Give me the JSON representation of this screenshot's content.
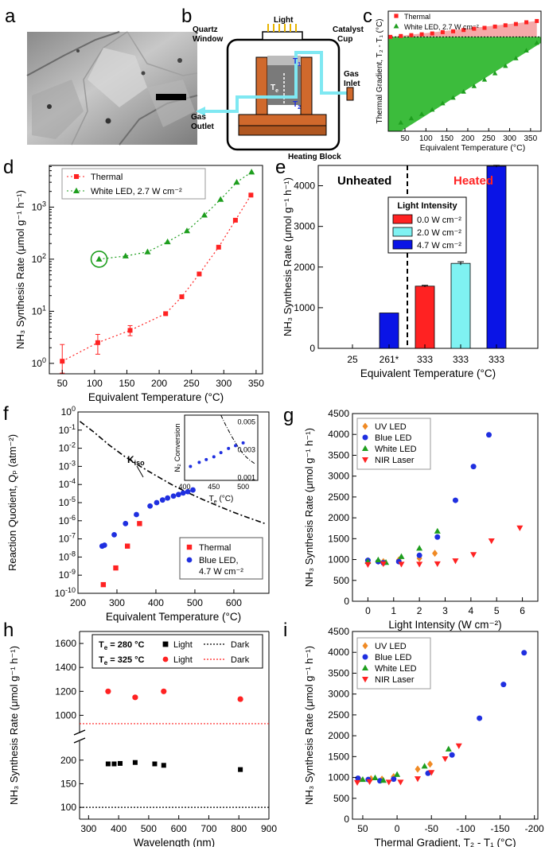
{
  "panel_letters": {
    "a": "a",
    "b": "b",
    "c": "c",
    "d": "d",
    "e": "e",
    "f": "f",
    "g": "g",
    "h": "h",
    "i": "i"
  },
  "colors": {
    "red": "#ff2222",
    "green": "#1e9e1e",
    "blue": "#1f2fe0",
    "orange": "#f08a24",
    "cyan": "#7ff2f2",
    "bar_blue": "#0a14e6",
    "pink_fill": "#f5a9a9",
    "green_fill": "#3cbc3c",
    "dark": "#000000"
  },
  "panel_a": {
    "image": "SEM micrograph (scale bar)"
  },
  "panel_b": {
    "light": "Light",
    "quartz_1": "Quartz",
    "quartz_2": "Window",
    "catalyst_1": "Catalyst",
    "catalyst_2": "Cup",
    "t1": "T",
    "t1_sub": "1",
    "t2": "T",
    "t2_sub": "2",
    "te": "T",
    "te_sub": "e",
    "gas_inlet_1": "Gas",
    "gas_inlet_2": "Inlet",
    "gas_outlet_1": "Gas",
    "gas_outlet_2": "Outlet",
    "heating_block": "Heating Block"
  },
  "chart_data": [
    {
      "id": "c",
      "type": "scatter",
      "xlabel": "Equivalent Temperature (°C)",
      "ylabel": "Thermal Gradient, T₂ - T₁ (°C)",
      "xlim": [
        10,
        375
      ],
      "ylim": [
        -220,
        60
      ],
      "x_ticks": [
        50,
        100,
        150,
        200,
        250,
        300,
        350
      ],
      "x_tick_labels": [
        "50",
        "100",
        "150",
        "200",
        "250",
        "300",
        "350"
      ],
      "series": [
        {
          "name": "Thermal",
          "marker": "square",
          "color": "#ff2222",
          "x": [
            15,
            40,
            65,
            90,
            115,
            140,
            165,
            190,
            215,
            240,
            265,
            290,
            315,
            340,
            365
          ],
          "y": [
            0,
            2,
            4,
            6,
            8,
            11,
            13,
            16,
            19,
            21,
            24,
            27,
            30,
            34,
            37
          ]
        },
        {
          "name": "White LED, 2.7 W cm⁻²",
          "marker": "triangle",
          "color": "#1e9e1e",
          "x": [
            40,
            65,
            90,
            115,
            140,
            165,
            190,
            215,
            240,
            265,
            290,
            315,
            340,
            365
          ],
          "y": [
            -200,
            -190,
            -180,
            -170,
            -155,
            -142,
            -128,
            -115,
            -100,
            -85,
            -68,
            -50,
            -32,
            -14
          ]
        }
      ]
    },
    {
      "id": "d",
      "type": "line",
      "log_y": true,
      "xlabel": "Equivalent Temperature (°C)",
      "ylabel": "NH₃ Synthesis Rate (μmol g⁻¹ h⁻¹)",
      "xlim": [
        30,
        360
      ],
      "ylim_log": [
        -0.2,
        3.8
      ],
      "x_ticks": [
        50,
        100,
        150,
        200,
        250,
        300,
        350
      ],
      "x_tick_labels": [
        "50",
        "100",
        "150",
        "200",
        "250",
        "300",
        "350"
      ],
      "y_ticks": [
        0,
        1,
        2,
        3
      ],
      "y_tick_base": "10",
      "y_tick_exps": [
        "0",
        "1",
        "2",
        "3"
      ],
      "series": [
        {
          "name": "Thermal",
          "marker": "square",
          "color": "#ff2222",
          "x": [
            50,
            105,
            155,
            210,
            235,
            262,
            292,
            318,
            342
          ],
          "y": [
            1.1,
            2.5,
            4.3,
            9.0,
            19,
            52,
            170,
            560,
            1700
          ],
          "err_low": [
            0.5,
            1.0,
            0.9,
            0,
            0,
            0,
            0,
            0,
            0
          ],
          "err_high": [
            1.2,
            1.1,
            1.0,
            0,
            0,
            0,
            0,
            0,
            0
          ]
        },
        {
          "name": "White LED, 2.7 W cm⁻²",
          "marker": "triangle",
          "color": "#1e9e1e",
          "x": [
            107,
            148,
            182,
            213,
            243,
            270,
            295,
            320,
            343
          ],
          "y": [
            100,
            115,
            138,
            215,
            350,
            700,
            1400,
            3000,
            4700
          ]
        }
      ],
      "circled_point": {
        "x": 107,
        "y": 100
      }
    },
    {
      "id": "e",
      "type": "bar",
      "xlabel": "Equivalent Temperature (°C)",
      "ylabel": "NH₃ Synthesis Rate (μmol g⁻¹ h⁻¹)",
      "ylim": [
        0,
        4500
      ],
      "y_ticks": [
        0,
        1000,
        2000,
        3000,
        4000
      ],
      "y_tick_labels": [
        "0",
        "1000",
        "2000",
        "3000",
        "4000"
      ],
      "categories": [
        "25",
        "261*",
        "333",
        "333",
        "333"
      ],
      "values": [
        0,
        870,
        1530,
        2090,
        4480
      ],
      "errors": [
        0,
        0,
        20,
        40,
        25
      ],
      "bar_colors": [
        "#0a14e6",
        "#0a14e6",
        "#ff2222",
        "#7ff2f2",
        "#0a14e6"
      ],
      "region_labels": {
        "left": "Unheated",
        "right": "Heated"
      },
      "legend_title": "Light Intensity",
      "legend": [
        {
          "label": "0.0 W cm⁻²",
          "color": "#ff2222"
        },
        {
          "label": "2.0 W cm⁻²",
          "color": "#7ff2f2"
        },
        {
          "label": "4.7 W cm⁻²",
          "color": "#0a14e6"
        }
      ]
    },
    {
      "id": "f",
      "type": "scatter",
      "log_y": true,
      "xlabel": "Equivalent Temperature (°C)",
      "ylabel": "Reaction Quotient, Qₚ (atm⁻²)",
      "xlim": [
        200,
        690
      ],
      "ylim_log": [
        -10,
        0
      ],
      "x_ticks": [
        200,
        300,
        400,
        500,
        600
      ],
      "x_tick_labels": [
        "200",
        "300",
        "400",
        "500",
        "600"
      ],
      "y_ticks": [
        -10,
        -9,
        -8,
        -7,
        -6,
        -5,
        -4,
        -3,
        -2,
        -1,
        0
      ],
      "y_tick_base": "10",
      "y_tick_exps": [
        "-10",
        "-9",
        "-8",
        "-7",
        "-6",
        "-5",
        "-4",
        "-3",
        "-2",
        "-1",
        "0"
      ],
      "kiso_label": "K",
      "kiso_sub": "iso",
      "kiso_curve": {
        "x": [
          205,
          240,
          280,
          320,
          360,
          400,
          440,
          480,
          520,
          560,
          600,
          640,
          680
        ],
        "y": [
          0.3,
          0.08,
          0.015,
          0.0035,
          0.001,
          0.00031,
          0.0001,
          3.7e-05,
          1.5e-05,
          6.5e-06,
          2.9e-06,
          1.4e-06,
          7e-07
        ]
      },
      "series": [
        {
          "name": "Thermal",
          "marker": "square",
          "color": "#ff2222",
          "x": [
            265,
            297,
            327,
            358
          ],
          "y": [
            3e-10,
            2.5e-09,
            4e-08,
            7e-07
          ]
        },
        {
          "name": "Blue LED, 4.7 W cm⁻²",
          "marker": "circle",
          "color": "#1f2fe0",
          "x": [
            262,
            268,
            293,
            322,
            350,
            385,
            402,
            417,
            430,
            445,
            458,
            470,
            482,
            495
          ],
          "y": [
            4e-08,
            4.5e-08,
            1.7e-07,
            7e-07,
            2.2e-06,
            6.5e-06,
            1e-05,
            1.4e-05,
            1.8e-05,
            2.3e-05,
            2.8e-05,
            3.4e-05,
            4e-05,
            5e-05
          ]
        }
      ],
      "legend_entries": [
        {
          "line1": "Thermal",
          "line2": ""
        },
        {
          "line1": "Blue LED,",
          "line2": "4.7 W cm⁻²"
        }
      ],
      "inset": {
        "xlabel": "T",
        "xlabel_sub": "e",
        "xlabel_unit": " (°C)",
        "ylabel": "N₂ Conversion",
        "xlim": [
          400,
          525
        ],
        "ylim": [
          0.0008,
          0.0055
        ],
        "x_ticks": [
          400,
          450,
          500
        ],
        "x_tick_labels": [
          "400",
          "450",
          "500"
        ],
        "y_ticks": [
          0.001,
          0.003,
          0.005
        ],
        "y_tick_labels": [
          "0.001",
          "0.003",
          "0.005"
        ],
        "points": {
          "x": [
            410,
            425,
            437,
            450,
            462,
            475,
            487,
            500
          ],
          "y": [
            0.0018,
            0.0021,
            0.0023,
            0.0025,
            0.0028,
            0.0031,
            0.0033,
            0.0035
          ]
        },
        "curve": {
          "x": [
            462,
            470,
            480,
            490,
            500,
            510,
            520
          ],
          "y": [
            0.0055,
            0.0048,
            0.004,
            0.0033,
            0.0027,
            0.0023,
            0.002
          ]
        }
      }
    },
    {
      "id": "g",
      "type": "scatter",
      "xlabel": "Light Intensity (W cm⁻²)",
      "ylabel": "NH₃ Synthesis Rate (μmol g⁻¹ h⁻¹)",
      "xlim": [
        -0.6,
        6.6
      ],
      "ylim": [
        0,
        4500
      ],
      "x_ticks": [
        0,
        1,
        2,
        3,
        4,
        5,
        6
      ],
      "x_tick_labels": [
        "0",
        "1",
        "2",
        "3",
        "4",
        "5",
        "6"
      ],
      "y_ticks": [
        0,
        500,
        1000,
        1500,
        2000,
        2500,
        3000,
        3500,
        4000,
        4500
      ],
      "y_tick_labels": [
        "0",
        "500",
        "1000",
        "1500",
        "2000",
        "2500",
        "3000",
        "3500",
        "4000",
        "4500"
      ],
      "series": [
        {
          "name": "UV LED",
          "marker": "diamond",
          "color": "#f08a24",
          "x": [
            0,
            0.4,
            0.6,
            1.2,
            2.0,
            2.6
          ],
          "y": [
            970,
            960,
            950,
            990,
            1030,
            1150
          ]
        },
        {
          "name": "Blue LED",
          "marker": "circle",
          "color": "#1f2fe0",
          "x": [
            0,
            0.4,
            0.6,
            1.2,
            2.0,
            2.7,
            3.4,
            4.1,
            4.7
          ],
          "y": [
            980,
            950,
            920,
            950,
            1100,
            1540,
            2420,
            3230,
            3990
          ]
        },
        {
          "name": "White LED",
          "marker": "triangle",
          "color": "#1e9e1e",
          "x": [
            0,
            0.4,
            0.7,
            1.3,
            2.0,
            2.7
          ],
          "y": [
            950,
            990,
            930,
            1070,
            1270,
            1680
          ]
        },
        {
          "name": "NIR Laser",
          "marker": "triangle-down",
          "color": "#ff2222",
          "x": [
            0,
            0.6,
            1.3,
            2.0,
            2.7,
            3.4,
            4.1,
            4.8,
            5.9
          ],
          "y": [
            880,
            900,
            890,
            890,
            900,
            970,
            1120,
            1450,
            1760
          ]
        }
      ]
    },
    {
      "id": "h",
      "type": "scatter",
      "broken_y": true,
      "xlabel": "Wavelength (nm)",
      "ylabel": "NH₃ Synthesis Rate (μmol g⁻¹ h⁻¹)",
      "xlim": [
        270,
        900
      ],
      "upper_ylim": [
        850,
        1700
      ],
      "lower_ylim": [
        75,
        240
      ],
      "x_ticks": [
        300,
        400,
        500,
        600,
        700,
        800,
        900
      ],
      "x_tick_labels": [
        "300",
        "400",
        "500",
        "600",
        "700",
        "800",
        "900"
      ],
      "y_ticks_upper": [
        1000,
        1200,
        1400,
        1600
      ],
      "y_tick_labels_upper": [
        "1000",
        "1200",
        "1400",
        "1600"
      ],
      "y_ticks_lower": [
        100,
        150,
        200
      ],
      "y_tick_labels_lower": [
        "100",
        "150",
        "200"
      ],
      "series": [
        {
          "name": "Te = 280 °C Light",
          "marker": "square",
          "color": "#000000",
          "x": [
            365,
            385,
            405,
            455,
            520,
            550,
            805
          ],
          "y": [
            192,
            192,
            193,
            195,
            192,
            189,
            180
          ]
        },
        {
          "name": "Te = 325 °C Light",
          "marker": "circle",
          "color": "#ff2222",
          "x": [
            365,
            455,
            550,
            805
          ],
          "y": [
            1200,
            1150,
            1200,
            1135
          ]
        }
      ],
      "dark_lines": [
        {
          "te": "280",
          "y": 100,
          "color": "#000000"
        },
        {
          "te": "325",
          "y": 930,
          "color": "#ff2222"
        }
      ],
      "legend": {
        "te_prefix": "T",
        "te_sub": "e",
        "row1_te": "= 280 °C",
        "row2_te": "= 325 °C",
        "light": "Light",
        "dark": "Dark"
      }
    },
    {
      "id": "i",
      "type": "scatter",
      "xlabel": "Thermal Gradient, T₂ - T₁ (°C)",
      "ylabel": "NH₃ Synthesis Rate (μmol g⁻¹ h⁻¹)",
      "xlim": [
        65,
        -205
      ],
      "ylim": [
        0,
        4500
      ],
      "x_ticks": [
        50,
        0,
        -50,
        -100,
        -150,
        -200
      ],
      "x_tick_labels": [
        "50",
        "0",
        "-50",
        "-100",
        "-150",
        "-200"
      ],
      "y_ticks": [
        0,
        500,
        1000,
        1500,
        2000,
        2500,
        3000,
        3500,
        4000,
        4500
      ],
      "y_tick_labels": [
        "0",
        "500",
        "1000",
        "1500",
        "2000",
        "2500",
        "3000",
        "3500",
        "4000",
        "4500"
      ],
      "series": [
        {
          "name": "UV LED",
          "marker": "diamond",
          "color": "#f08a24",
          "x": [
            55,
            38,
            22,
            5,
            -30,
            -48
          ],
          "y": [
            960,
            970,
            960,
            1020,
            1200,
            1320
          ]
        },
        {
          "name": "Blue LED",
          "marker": "circle",
          "color": "#1f2fe0",
          "x": [
            57,
            42,
            25,
            5,
            -45,
            -80,
            -120,
            -155,
            -185
          ],
          "y": [
            980,
            950,
            920,
            960,
            1100,
            1540,
            2420,
            3230,
            3990
          ]
        },
        {
          "name": "White LED",
          "marker": "triangle",
          "color": "#1e9e1e",
          "x": [
            50,
            32,
            20,
            0,
            -40,
            -75
          ],
          "y": [
            950,
            990,
            930,
            1070,
            1270,
            1680
          ]
        },
        {
          "name": "NIR Laser",
          "marker": "triangle-down",
          "color": "#ff2222",
          "x": [
            58,
            40,
            12,
            -5,
            -30,
            -50,
            -70,
            -90
          ],
          "y": [
            880,
            900,
            890,
            890,
            970,
            1120,
            1450,
            1760
          ]
        }
      ]
    }
  ]
}
